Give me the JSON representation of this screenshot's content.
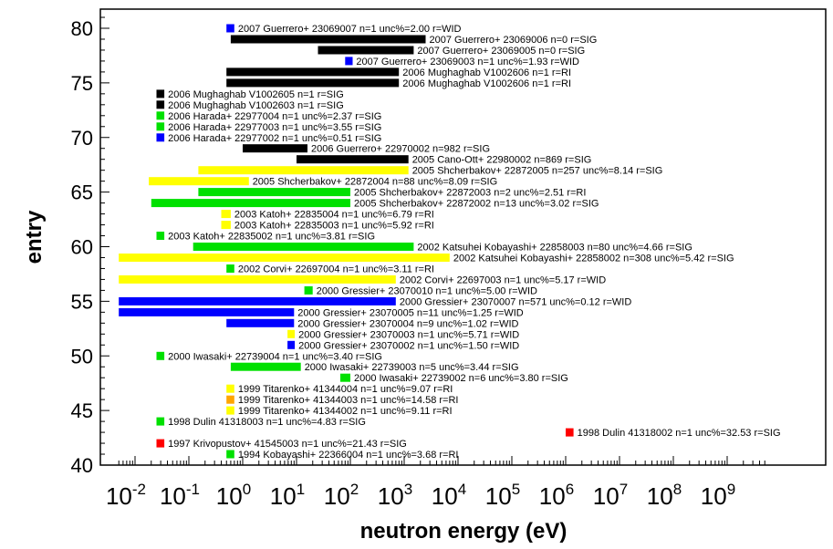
{
  "chart_data": {
    "type": "bar",
    "orientation": "horizontal",
    "title": "",
    "xlabel": "neutron energy (eV)",
    "ylabel": "entry",
    "x_scale": "log",
    "xlim": [
      0.005,
      5000000000
    ],
    "ylim": [
      40,
      81
    ],
    "x_ticks": [
      {
        "exp": "-2",
        "value": 0.01
      },
      {
        "exp": "-1",
        "value": 0.1
      },
      {
        "exp": "0",
        "value": 1
      },
      {
        "exp": "1",
        "value": 10
      },
      {
        "exp": "2",
        "value": 100
      },
      {
        "exp": "3",
        "value": 1000
      },
      {
        "exp": "4",
        "value": 10000
      },
      {
        "exp": "5",
        "value": 100000
      },
      {
        "exp": "6",
        "value": 1000000
      },
      {
        "exp": "7",
        "value": 10000000
      },
      {
        "exp": "8",
        "value": 100000000
      },
      {
        "exp": "9",
        "value": 1000000000
      }
    ],
    "x_tick_base": "10",
    "y_ticks": [
      "40",
      "45",
      "50",
      "55",
      "60",
      "65",
      "70",
      "75",
      "80"
    ],
    "colors": {
      "SIG": "#000000",
      "WID": "#0000ff",
      "RI": "#000000"
    },
    "entries": [
      {
        "entry": 80,
        "x0": 0.5,
        "x1": 0.7,
        "color": "#0000ff",
        "label": "2007 Guerrero+ 23069007 n=1 unc%=2.00 r=WID"
      },
      {
        "entry": 79,
        "x0": 0.6,
        "x1": 2500,
        "color": "#000000",
        "label": "2007 Guerrero+ 23069006 n=0 r=SIG"
      },
      {
        "entry": 78,
        "x0": 25,
        "x1": 1500,
        "color": "#000000",
        "label": "2007 Guerrero+ 23069005 n=0 r=SIG"
      },
      {
        "entry": 77,
        "x0": 80,
        "x1": 110,
        "color": "#0000ff",
        "label": "2007 Guerrero+ 23069003 n=1 unc%=1.93 r=WID"
      },
      {
        "entry": 76,
        "x0": 0.5,
        "x1": 800,
        "color": "#000000",
        "label": "2006 Mughaghab V1002606 n=1 r=RI"
      },
      {
        "entry": 75,
        "x0": 0.5,
        "x1": 800,
        "color": "#000000",
        "label": "2006 Mughaghab V1002606 n=1 r=RI"
      },
      {
        "entry": 74,
        "x0": 0.025,
        "x1": 0.035,
        "color": "#000000",
        "label": "2006 Mughaghab V1002605 n=1 r=SIG"
      },
      {
        "entry": 73,
        "x0": 0.025,
        "x1": 0.035,
        "color": "#000000",
        "label": "2006 Mughaghab V1002603 n=1 r=SIG"
      },
      {
        "entry": 72,
        "x0": 0.025,
        "x1": 0.035,
        "color": "#00e000",
        "label": "2006 Harada+ 22977004 n=1 unc%=2.37 r=SIG"
      },
      {
        "entry": 71,
        "x0": 0.025,
        "x1": 0.035,
        "color": "#00e000",
        "label": "2006 Harada+ 22977003 n=1 unc%=3.55 r=SIG"
      },
      {
        "entry": 70,
        "x0": 0.025,
        "x1": 0.035,
        "color": "#0000ff",
        "label": "2006 Harada+ 22977002 n=1 unc%=0.51 r=SIG"
      },
      {
        "entry": 69,
        "x0": 1,
        "x1": 16,
        "color": "#000000",
        "label": "2006 Guerrero+ 22970002 n=982 r=SIG"
      },
      {
        "entry": 68,
        "x0": 10,
        "x1": 1200,
        "color": "#000000",
        "label": "2005 Cano-Ott+ 22980002 n=869 r=SIG"
      },
      {
        "entry": 67,
        "x0": 0.15,
        "x1": 1200,
        "color": "#ffff00",
        "label": "2005 Shcherbakov+ 22872005 n=257 unc%=8.14 r=SIG"
      },
      {
        "entry": 66,
        "x0": 0.018,
        "x1": 1.3,
        "color": "#ffff00",
        "label": "2005 Shcherbakov+ 22872004 n=88 unc%=8.09 r=SIG"
      },
      {
        "entry": 65,
        "x0": 0.15,
        "x1": 100,
        "color": "#00e000",
        "label": "2005 Shcherbakov+ 22872003 n=2 unc%=2.51 r=RI"
      },
      {
        "entry": 64,
        "x0": 0.02,
        "x1": 100,
        "color": "#00e000",
        "label": "2005 Shcherbakov+ 22872002 n=13 unc%=3.02 r=SIG"
      },
      {
        "entry": 63,
        "x0": 0.4,
        "x1": 0.6,
        "color": "#ffff00",
        "label": "2003 Katoh+ 22835004 n=1 unc%=6.79 r=RI"
      },
      {
        "entry": 62,
        "x0": 0.4,
        "x1": 0.6,
        "color": "#ffff00",
        "label": "2003 Katoh+ 22835003 n=1 unc%=5.92 r=RI"
      },
      {
        "entry": 61,
        "x0": 0.025,
        "x1": 0.035,
        "color": "#00e000",
        "label": "2003 Katoh+ 22835002 n=1 unc%=3.81 r=SIG"
      },
      {
        "entry": 60,
        "x0": 0.12,
        "x1": 1500,
        "color": "#00e000",
        "label": "2002 Katsuhei Kobayashi+ 22858003 n=80 unc%=4.66 r=SIG"
      },
      {
        "entry": 59,
        "x0": 0.005,
        "x1": 7000,
        "color": "#ffff00",
        "label": "2002 Katsuhei Kobayashi+ 22858002 n=308 unc%=5.42 r=SIG"
      },
      {
        "entry": 58,
        "x0": 0.5,
        "x1": 0.7,
        "color": "#00e000",
        "label": "2002 Corvi+ 22697004 n=1 unc%=3.11 r=RI"
      },
      {
        "entry": 57,
        "x0": 0.005,
        "x1": 700,
        "color": "#ffff00",
        "label": "2002 Corvi+ 22697003 n=1 unc%=5.17 r=WID"
      },
      {
        "entry": 56,
        "x0": 14,
        "x1": 20,
        "color": "#00e000",
        "label": "2000 Gressier+ 23070010 n=1 unc%=5.00 r=WID"
      },
      {
        "entry": 55,
        "x0": 0.005,
        "x1": 700,
        "color": "#0000ff",
        "label": "2000 Gressier+ 23070007 n=571 unc%=0.12 r=WID"
      },
      {
        "entry": 54,
        "x0": 0.005,
        "x1": 9,
        "color": "#0000ff",
        "label": "2000 Gressier+ 23070005 n=11 unc%=1.25 r=WID"
      },
      {
        "entry": 53,
        "x0": 0.5,
        "x1": 9,
        "color": "#0000ff",
        "label": "2000 Gressier+ 23070004 n=9 unc%=1.02 r=WID"
      },
      {
        "entry": 52,
        "x0": 7,
        "x1": 9,
        "color": "#ffff00",
        "label": "2000 Gressier+ 23070003 n=1 unc%=5.71 r=WID"
      },
      {
        "entry": 51,
        "x0": 7,
        "x1": 9,
        "color": "#0000ff",
        "label": "2000 Gressier+ 23070002 n=1 unc%=1.50 r=WID"
      },
      {
        "entry": 50,
        "x0": 0.025,
        "x1": 0.035,
        "color": "#00e000",
        "label": "2000 Iwasaki+ 22739004 n=1 unc%=3.40 r=SIG"
      },
      {
        "entry": 49,
        "x0": 0.6,
        "x1": 12,
        "color": "#00e000",
        "label": "2000 Iwasaki+ 22739003 n=5 unc%=3.44 r=SIG"
      },
      {
        "entry": 48,
        "x0": 65,
        "x1": 100,
        "color": "#00e000",
        "label": "2000 Iwasaki+ 22739002 n=6 unc%=3.80 r=SIG"
      },
      {
        "entry": 47,
        "x0": 0.5,
        "x1": 0.7,
        "color": "#ffff00",
        "label": "1999 Titarenko+ 41344004 n=1 unc%=9.07 r=RI"
      },
      {
        "entry": 46,
        "x0": 0.5,
        "x1": 0.7,
        "color": "#ffa500",
        "label": "1999 Titarenko+ 41344003 n=1 unc%=14.58 r=RI"
      },
      {
        "entry": 45,
        "x0": 0.5,
        "x1": 0.7,
        "color": "#ffff00",
        "label": "1999 Titarenko+ 41344002 n=1 unc%=9.11 r=RI"
      },
      {
        "entry": 44,
        "x0": 0.025,
        "x1": 0.035,
        "color": "#00e000",
        "label": "1998 Dulin 41318003 n=1 unc%=4.83 r=SIG"
      },
      {
        "entry": 43,
        "x0": 1000000,
        "x1": 1400000,
        "color": "#ff0000",
        "label": "1998 Dulin 41318002 n=1 unc%=32.53 r=SIG"
      },
      {
        "entry": 42,
        "x0": 0.025,
        "x1": 0.035,
        "color": "#ff0000",
        "label": "1997 Krivopustov+ 41545003 n=1 unc%=21.43 r=SIG"
      },
      {
        "entry": 41,
        "x0": 0.5,
        "x1": 0.7,
        "color": "#00e000",
        "label": "1994 Kobayashi+ 22366004 n=1 unc%=3.68 r=RI"
      }
    ]
  }
}
